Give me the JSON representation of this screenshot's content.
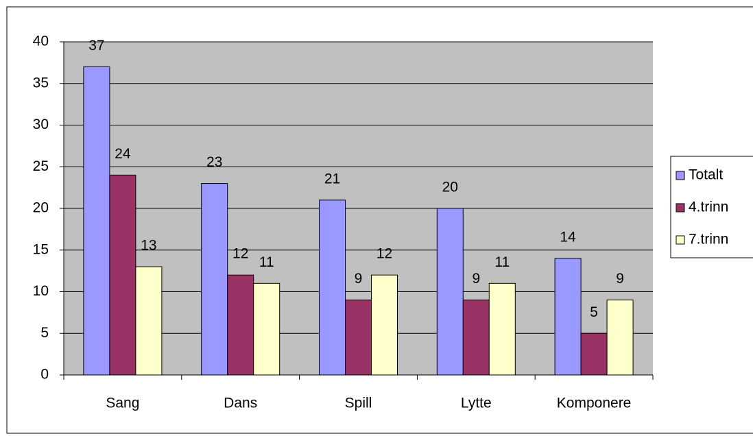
{
  "chart_data": {
    "type": "bar",
    "categories": [
      "Sang",
      "Dans",
      "Spill",
      "Lytte",
      "Komponere"
    ],
    "series": [
      {
        "name": "Totalt",
        "color": "#9999ff",
        "values": [
          37,
          23,
          21,
          20,
          14
        ]
      },
      {
        "name": "4.trinn",
        "color": "#993366",
        "values": [
          24,
          12,
          9,
          9,
          5
        ]
      },
      {
        "name": "7.trinn",
        "color": "#ffffcc",
        "values": [
          13,
          11,
          12,
          11,
          9
        ]
      }
    ],
    "ylim": [
      0,
      40
    ],
    "yticks": [
      0,
      5,
      10,
      15,
      20,
      25,
      30,
      35,
      40
    ],
    "grid": true,
    "legend": "right"
  }
}
